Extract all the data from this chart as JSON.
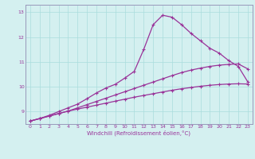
{
  "title": "",
  "xlabel": "Windchill (Refroidissement éolien,°C)",
  "ylabel": "",
  "bg_color": "#d4f0f0",
  "line_color": "#993399",
  "grid_color": "#aadddd",
  "axis_color": "#9999bb",
  "xlim": [
    -0.5,
    23.5
  ],
  "ylim": [
    8.5,
    13.3
  ],
  "xticks": [
    0,
    1,
    2,
    3,
    4,
    5,
    6,
    7,
    8,
    9,
    10,
    11,
    12,
    13,
    14,
    15,
    16,
    17,
    18,
    19,
    20,
    21,
    22,
    23
  ],
  "yticks": [
    9,
    10,
    11,
    12,
    13
  ],
  "curve1_x": [
    0,
    1,
    2,
    3,
    4,
    5,
    6,
    7,
    8,
    9,
    10,
    11,
    12,
    13,
    14,
    15,
    16,
    17,
    18,
    19,
    20,
    21,
    22,
    23
  ],
  "curve1_y": [
    8.62,
    8.72,
    8.82,
    8.92,
    9.02,
    9.1,
    9.18,
    9.26,
    9.34,
    9.42,
    9.5,
    9.58,
    9.65,
    9.72,
    9.79,
    9.86,
    9.92,
    9.97,
    10.02,
    10.06,
    10.09,
    10.11,
    10.12,
    10.11
  ],
  "curve2_x": [
    0,
    1,
    2,
    3,
    4,
    5,
    6,
    7,
    8,
    9,
    10,
    11,
    12,
    13,
    14,
    15,
    16,
    17,
    18,
    19,
    20,
    21,
    22,
    23
  ],
  "curve2_y": [
    8.62,
    8.72,
    8.82,
    8.92,
    9.02,
    9.15,
    9.28,
    9.41,
    9.54,
    9.67,
    9.8,
    9.93,
    10.06,
    10.19,
    10.32,
    10.45,
    10.57,
    10.67,
    10.75,
    10.82,
    10.87,
    10.9,
    10.92,
    10.72
  ],
  "curve3_x": [
    0,
    1,
    2,
    3,
    4,
    5,
    6,
    7,
    8,
    9,
    10,
    11,
    12,
    13,
    14,
    15,
    16,
    17,
    18,
    19,
    20,
    21,
    22,
    23
  ],
  "curve3_y": [
    8.62,
    8.72,
    8.85,
    9.0,
    9.15,
    9.3,
    9.52,
    9.75,
    9.95,
    10.1,
    10.35,
    10.62,
    11.5,
    12.5,
    12.88,
    12.8,
    12.5,
    12.15,
    11.85,
    11.55,
    11.35,
    11.05,
    10.82,
    10.2
  ],
  "marker": "+",
  "markersize": 3,
  "linewidth": 0.9
}
